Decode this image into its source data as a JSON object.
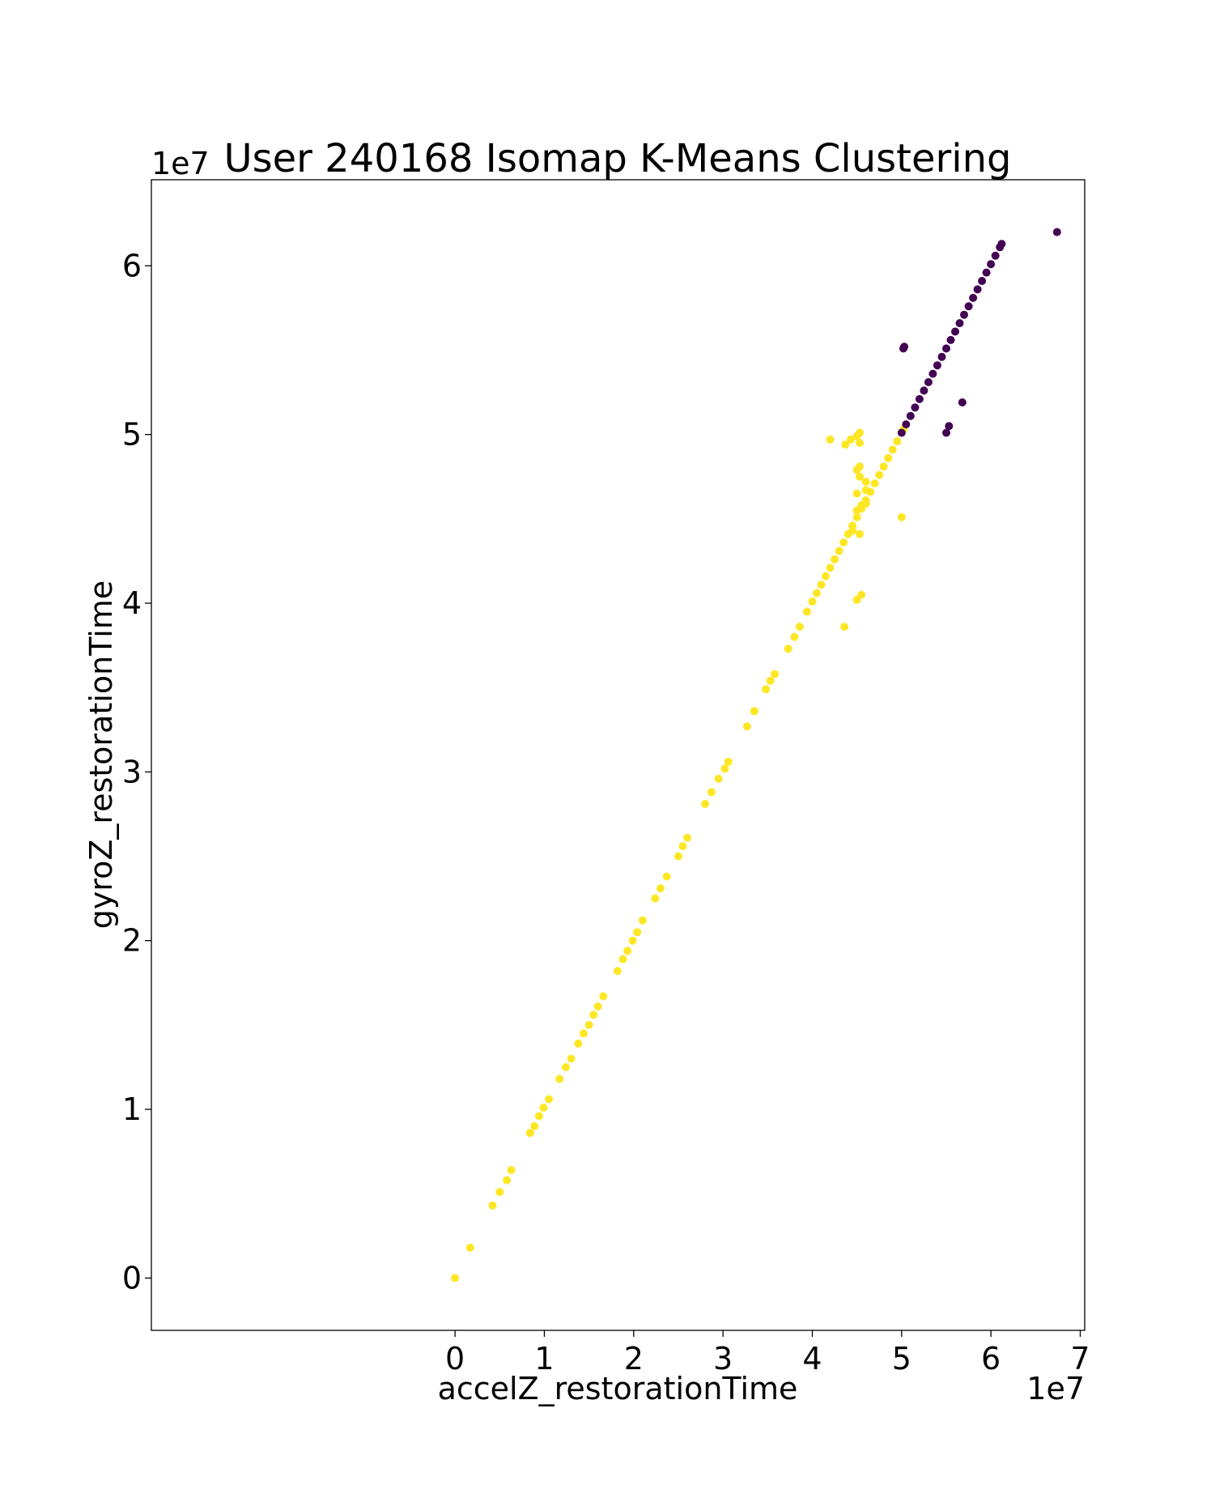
{
  "chart_data": {
    "type": "scatter",
    "title": "User 240168 Isomap K-Means Clustering",
    "xlabel": "accelZ_restorationTime",
    "ylabel": "gyroZ_restorationTime",
    "x_multiplier_label": "1e7",
    "y_multiplier_label": "1e7",
    "x_scale": 10000000,
    "y_scale": 10000000,
    "xlim": [
      -3.4,
      7.05
    ],
    "ylim": [
      -3.1,
      65.1
    ],
    "x_ticks": [
      0,
      1,
      2,
      3,
      4,
      5,
      6,
      7
    ],
    "y_ticks": [
      0,
      1,
      2,
      3,
      4,
      5,
      6
    ],
    "tick_labels_x": [
      "0",
      "1",
      "2",
      "3",
      "4",
      "5",
      "6",
      "7"
    ],
    "tick_labels_y": [
      "0",
      "1",
      "2",
      "3",
      "4",
      "5",
      "6"
    ],
    "grid": false,
    "legend": "none",
    "series": [
      {
        "cluster": 0,
        "color": "#fde725",
        "points": [
          [
            0.0,
            0.0
          ],
          [
            0.17,
            0.18
          ],
          [
            0.42,
            0.43
          ],
          [
            0.5,
            0.51
          ],
          [
            0.58,
            0.58
          ],
          [
            0.63,
            0.64
          ],
          [
            0.84,
            0.86
          ],
          [
            0.89,
            0.9
          ],
          [
            0.94,
            0.96
          ],
          [
            0.99,
            1.01
          ],
          [
            1.05,
            1.06
          ],
          [
            1.17,
            1.18
          ],
          [
            1.24,
            1.25
          ],
          [
            1.3,
            1.3
          ],
          [
            1.38,
            1.39
          ],
          [
            1.44,
            1.45
          ],
          [
            1.5,
            1.5
          ],
          [
            1.55,
            1.56
          ],
          [
            1.6,
            1.61
          ],
          [
            1.66,
            1.67
          ],
          [
            1.82,
            1.82
          ],
          [
            1.88,
            1.89
          ],
          [
            1.93,
            1.94
          ],
          [
            1.99,
            2.0
          ],
          [
            2.04,
            2.05
          ],
          [
            2.1,
            2.12
          ],
          [
            2.24,
            2.25
          ],
          [
            2.3,
            2.31
          ],
          [
            2.37,
            2.38
          ],
          [
            2.5,
            2.5
          ],
          [
            2.55,
            2.56
          ],
          [
            2.6,
            2.61
          ],
          [
            2.8,
            2.81
          ],
          [
            2.87,
            2.88
          ],
          [
            2.95,
            2.96
          ],
          [
            3.02,
            3.02
          ],
          [
            3.06,
            3.06
          ],
          [
            3.27,
            3.27
          ],
          [
            3.35,
            3.36
          ],
          [
            3.48,
            3.49
          ],
          [
            3.53,
            3.54
          ],
          [
            3.58,
            3.58
          ],
          [
            3.73,
            3.73
          ],
          [
            3.8,
            3.8
          ],
          [
            3.86,
            3.86
          ],
          [
            3.94,
            3.95
          ],
          [
            4.0,
            4.01
          ],
          [
            4.05,
            4.06
          ],
          [
            4.1,
            4.11
          ],
          [
            4.15,
            4.16
          ],
          [
            4.2,
            4.21
          ],
          [
            4.25,
            4.26
          ],
          [
            4.3,
            4.31
          ],
          [
            4.35,
            4.36
          ],
          [
            4.4,
            4.41
          ],
          [
            4.45,
            4.46
          ],
          [
            4.5,
            4.51
          ],
          [
            4.55,
            4.56
          ],
          [
            4.6,
            4.61
          ],
          [
            4.65,
            4.66
          ],
          [
            4.7,
            4.71
          ],
          [
            4.75,
            4.76
          ],
          [
            4.8,
            4.81
          ],
          [
            4.85,
            4.86
          ],
          [
            4.9,
            4.91
          ],
          [
            4.95,
            4.96
          ],
          [
            5.0,
            5.01
          ],
          [
            5.02,
            5.03
          ],
          [
            4.2,
            4.97
          ],
          [
            4.37,
            4.94
          ],
          [
            4.43,
            4.97
          ],
          [
            4.5,
            4.99
          ],
          [
            4.53,
            5.01
          ],
          [
            4.53,
            4.95
          ],
          [
            4.5,
            4.79
          ],
          [
            4.53,
            4.75
          ],
          [
            4.53,
            4.81
          ],
          [
            4.6,
            4.72
          ],
          [
            4.5,
            4.65
          ],
          [
            4.6,
            4.67
          ],
          [
            4.5,
            4.55
          ],
          [
            4.55,
            4.58
          ],
          [
            4.53,
            4.41
          ],
          [
            4.5,
            4.02
          ],
          [
            4.55,
            4.05
          ],
          [
            4.36,
            3.86
          ],
          [
            5.0,
            4.51
          ],
          [
            4.45,
            4.43
          ],
          [
            4.6,
            4.59
          ]
        ]
      },
      {
        "cluster": 1,
        "color": "#440154",
        "points": [
          [
            5.0,
            5.01
          ],
          [
            5.05,
            5.06
          ],
          [
            5.1,
            5.11
          ],
          [
            5.15,
            5.16
          ],
          [
            5.2,
            5.21
          ],
          [
            5.25,
            5.26
          ],
          [
            5.3,
            5.31
          ],
          [
            5.35,
            5.36
          ],
          [
            5.4,
            5.41
          ],
          [
            5.45,
            5.46
          ],
          [
            5.5,
            5.51
          ],
          [
            5.55,
            5.56
          ],
          [
            5.6,
            5.61
          ],
          [
            5.65,
            5.66
          ],
          [
            5.7,
            5.71
          ],
          [
            5.75,
            5.76
          ],
          [
            5.8,
            5.81
          ],
          [
            5.85,
            5.86
          ],
          [
            5.9,
            5.91
          ],
          [
            5.95,
            5.96
          ],
          [
            6.0,
            6.01
          ],
          [
            6.05,
            6.06
          ],
          [
            6.1,
            6.11
          ],
          [
            6.12,
            6.13
          ],
          [
            5.02,
            5.51
          ],
          [
            5.03,
            5.52
          ],
          [
            5.5,
            5.01
          ],
          [
            5.53,
            5.05
          ],
          [
            5.68,
            5.19
          ],
          [
            6.74,
            6.2
          ]
        ]
      }
    ]
  }
}
